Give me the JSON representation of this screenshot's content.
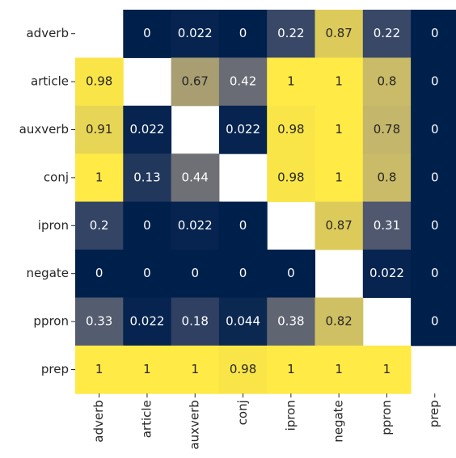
{
  "chart_data": {
    "type": "heatmap",
    "colormap": "cividis",
    "zlim": [
      0,
      1
    ],
    "x_categories": [
      "adverb",
      "article",
      "auxverb",
      "conj",
      "ipron",
      "negate",
      "ppron",
      "prep"
    ],
    "y_categories": [
      "adverb",
      "article",
      "auxverb",
      "conj",
      "ipron",
      "negate",
      "ppron",
      "prep"
    ],
    "values": [
      [
        null,
        0,
        0.022,
        0,
        0.22,
        0.87,
        0.22,
        0
      ],
      [
        0.98,
        null,
        0.67,
        0.42,
        1,
        1,
        0.8,
        0
      ],
      [
        0.91,
        0.022,
        null,
        0.022,
        0.98,
        1,
        0.78,
        0
      ],
      [
        1,
        0.13,
        0.44,
        null,
        0.98,
        1,
        0.8,
        0
      ],
      [
        0.2,
        0,
        0.022,
        0,
        null,
        0.87,
        0.31,
        0
      ],
      [
        0,
        0,
        0,
        0,
        0,
        null,
        0.022,
        0
      ],
      [
        0.33,
        0.022,
        0.18,
        0.044,
        0.38,
        0.82,
        null,
        0
      ],
      [
        1,
        1,
        1,
        0.98,
        1,
        1,
        1,
        null
      ]
    ]
  }
}
